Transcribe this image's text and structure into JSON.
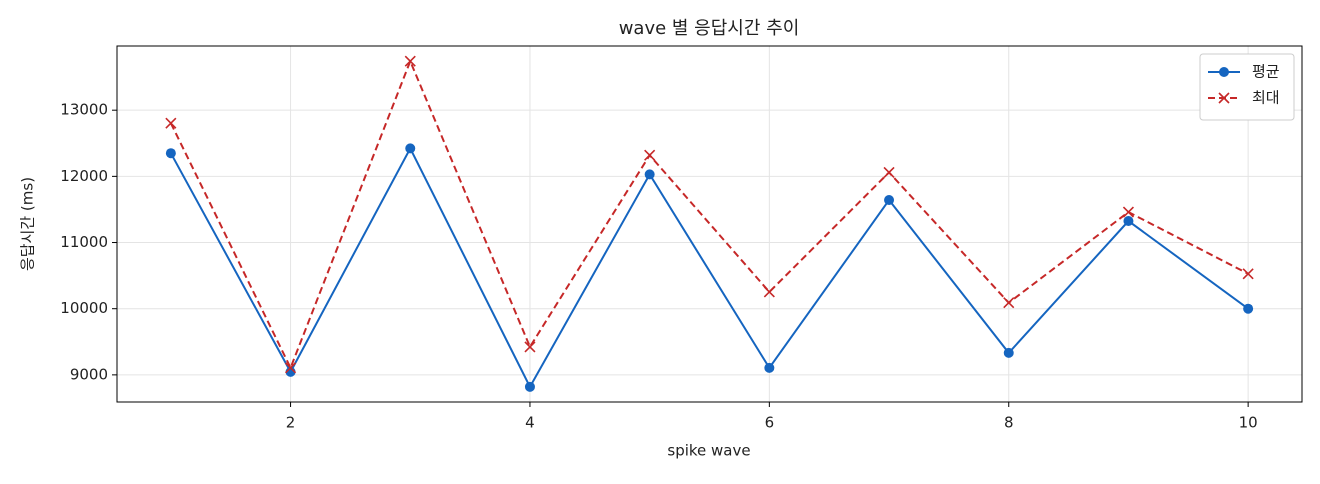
{
  "chart_data": {
    "type": "line",
    "title": "wave 별 응답시간 추이",
    "x_label": "spike wave",
    "y_label": "응답시간 (ms)",
    "x": [
      1,
      2,
      3,
      4,
      5,
      6,
      7,
      8,
      9,
      10
    ],
    "series": [
      {
        "name": "평균",
        "color": "#1565c0",
        "linestyle": "solid",
        "marker": "circle",
        "values": [
          12350,
          9045,
          12423,
          8819,
          12030,
          9106,
          11642,
          9332,
          11325,
          10000
        ]
      },
      {
        "name": "최대",
        "color": "#c62828",
        "linestyle": "dashed",
        "marker": "x",
        "values": [
          12804,
          9106,
          13740,
          9423,
          12320,
          10253,
          12060,
          10090,
          11460,
          10528
        ]
      }
    ],
    "xlim": [
      0.55,
      10.45
    ],
    "xticks": [
      2,
      4,
      6,
      8,
      10
    ],
    "ylim": [
      8590,
      13970
    ],
    "yticks": [
      9000,
      10000,
      11000,
      12000,
      13000
    ],
    "grid": true,
    "legend": "upper right"
  }
}
